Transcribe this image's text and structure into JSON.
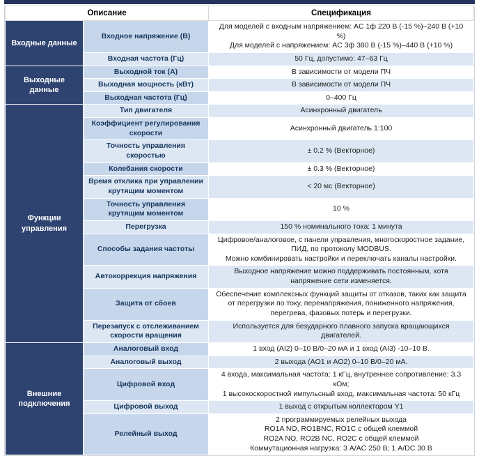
{
  "header": {
    "description": "Описание",
    "specification": "Спецификация"
  },
  "colors": {
    "top_bar": "#23355f",
    "group_bg": "#2e4370",
    "param_odd_bg": "#c7d7eb",
    "row_alt_bg": "#dce7f3",
    "param_text": "#17365d"
  },
  "groups": [
    {
      "label": "Входные данные",
      "rows": [
        {
          "param": "Входное напряжение (В)",
          "spec": "Для моделей с входным напряжением: AC 1ф 220 В (-15 %)–240 В (+10 %)\nДля моделей с напряжением: AC 3ф 380 В (-15 %)–440 В (+10 %)"
        },
        {
          "param": "Входная частота (Гц)",
          "spec": "50 Гц, допустимо: 47–63 Гц"
        }
      ]
    },
    {
      "label": "Выходные данные",
      "rows": [
        {
          "param": "Выходной ток (А)",
          "spec": "В зависимости от модели ПЧ"
        },
        {
          "param": "Выходная мощность (кВт)",
          "spec": "В зависимости от модели ПЧ"
        },
        {
          "param": "Выходная частота (Гц)",
          "spec": "0–400 Гц"
        }
      ]
    },
    {
      "label": "Функции управления",
      "rows": [
        {
          "param": "Тип двигателя",
          "spec": "Асинхронный двигатель"
        },
        {
          "param": "Коэффициент регулирования скорости",
          "spec": "Асинхронный двигатель 1:100"
        },
        {
          "param": "Точность управления скоростью",
          "spec": "± 0.2 % (Векторное)"
        },
        {
          "param": "Колебания скорости",
          "spec": "± 0.3 % (Векторное)"
        },
        {
          "param": "Время отклика при управлении крутящим моментом",
          "spec": "< 20 мс (Векторное)"
        },
        {
          "param": "Точность управления крутящим моментом",
          "spec": "10 %"
        },
        {
          "param": "Перегрузка",
          "spec": "150 % номинального тока: 1 минута"
        },
        {
          "param": "Способы задания частоты",
          "spec": "Цифровое/аналоговое, с панели управления, многоскоростное задание, ПИД, по протоколу MODBUS.\nМожно комбинировать настройки и переключать каналы настройки."
        },
        {
          "param": "Автокоррекция напряжения",
          "spec": "Выходное напряжение можно поддерживать постоянным, хотя напряжение сети изменяется."
        },
        {
          "param": "Защита от сбоев",
          "spec": "Обеспечение комплексных функций защиты от отказов, таких как защита от перегрузки по току, перенапряжения, пониженного напряжения, перегрева, фазовых потерь и перегрузки."
        },
        {
          "param": "Перезапуск с отслеживанием скорости вращения",
          "spec": "Используется для безударного плавного запуска вращающихся двигателей."
        }
      ]
    },
    {
      "label": "Внешние подключения",
      "rows": [
        {
          "param": "Аналоговый вход",
          "spec": "1 вход (AI2) 0–10 В/0–20 мА и 1 вход (AI3) -10–10 В."
        },
        {
          "param": "Аналоговый выход",
          "spec": "2 выхода (AO1 и AO2) 0–10 В/0–20 мА."
        },
        {
          "param": "Цифровой вход",
          "spec": "4 входа, максимальная частота: 1 кГц, внутреннее сопротивление: 3.3 кОм;\n1 высокоскоростной импульсный вход, максимальная частота: 50 кГц"
        },
        {
          "param": "Цифровой выход",
          "spec": "1 выход с открытым коллектором Y1"
        },
        {
          "param": "Релейный выход",
          "spec": "2 программируемых релейных выхода\nRO1A NO, RO1BNC, RO1C с общей клеммой\nRO2A NO, RO2B NC, RO2C с общей клеммой\nКоммутационная нагрузка: 3 А/AC 250 В; 1 А/DC 30 В"
        }
      ]
    }
  ]
}
